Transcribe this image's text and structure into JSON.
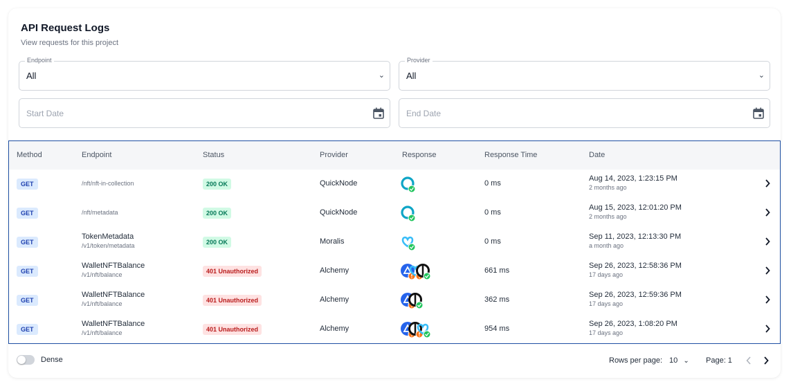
{
  "header": {
    "title": "API Request Logs",
    "subtitle": "View requests for this project"
  },
  "filters": {
    "endpoint": {
      "label": "Endpoint",
      "value": "All"
    },
    "provider": {
      "label": "Provider",
      "value": "All"
    },
    "start_date": {
      "placeholder": "Start Date"
    },
    "end_date": {
      "placeholder": "End Date"
    }
  },
  "table": {
    "columns": [
      "Method",
      "Endpoint",
      "Status",
      "Provider",
      "Response",
      "Response Time",
      "Date"
    ],
    "rows": [
      {
        "method": "GET",
        "endpoint_name": "",
        "endpoint_path": "/nft/nft-in-collection",
        "status": "200 OK",
        "status_kind": "ok",
        "provider": "QuickNode",
        "response_icons": [
          "quicknode-success"
        ],
        "response_time": "0 ms",
        "date": "Aug 14, 2023, 1:23:15 PM",
        "ago": "2 months ago"
      },
      {
        "method": "GET",
        "endpoint_name": "",
        "endpoint_path": "/nft/metadata",
        "status": "200 OK",
        "status_kind": "ok",
        "provider": "QuickNode",
        "response_icons": [
          "quicknode-success"
        ],
        "response_time": "0 ms",
        "date": "Aug 15, 2023, 12:01:20 PM",
        "ago": "2 months ago"
      },
      {
        "method": "GET",
        "endpoint_name": "TokenMetadata",
        "endpoint_path": "/v1/token/metadata",
        "status": "200 OK",
        "status_kind": "ok",
        "provider": "Moralis",
        "response_icons": [
          "moralis-success"
        ],
        "response_time": "0 ms",
        "date": "Sep 11, 2023, 12:13:30 PM",
        "ago": "a month ago"
      },
      {
        "method": "GET",
        "endpoint_name": "WalletNFTBalance",
        "endpoint_path": "/v1/nft/balance",
        "status": "401 Unauthorized",
        "status_kind": "error",
        "provider": "Alchemy",
        "response_icons": [
          "alchemy-error",
          "moralis-error",
          "opensea-success"
        ],
        "response_time": "661 ms",
        "date": "Sep 26, 2023, 12:58:36 PM",
        "ago": "17 days ago"
      },
      {
        "method": "GET",
        "endpoint_name": "WalletNFTBalance",
        "endpoint_path": "/v1/nft/balance",
        "status": "401 Unauthorized",
        "status_kind": "error",
        "provider": "Alchemy",
        "response_icons": [
          "alchemy-error",
          "opensea-success"
        ],
        "response_time": "362 ms",
        "date": "Sep 26, 2023, 12:59:36 PM",
        "ago": "17 days ago"
      },
      {
        "method": "GET",
        "endpoint_name": "WalletNFTBalance",
        "endpoint_path": "/v1/nft/balance",
        "status": "401 Unauthorized",
        "status_kind": "error",
        "provider": "Alchemy",
        "response_icons": [
          "alchemy-error",
          "opensea-error",
          "moralis-success"
        ],
        "response_time": "954 ms",
        "date": "Sep 26, 2023, 1:08:20 PM",
        "ago": "17 days ago"
      }
    ]
  },
  "footer": {
    "dense_label": "Dense",
    "rows_per_page_label": "Rows per page:",
    "rows_per_page_value": "10",
    "page_label": "Page: 1"
  },
  "colors": {
    "ok_bg": "#d1fae5",
    "ok_text": "#047857",
    "error_bg": "#fee2e2",
    "error_text": "#b91c1c",
    "success_dot": "#22c55e",
    "error_dot": "#f97316",
    "quicknode": "#0ea5c6",
    "moralis": "#38bdf8",
    "alchemy": "#2563eb",
    "opensea": "#111111"
  }
}
